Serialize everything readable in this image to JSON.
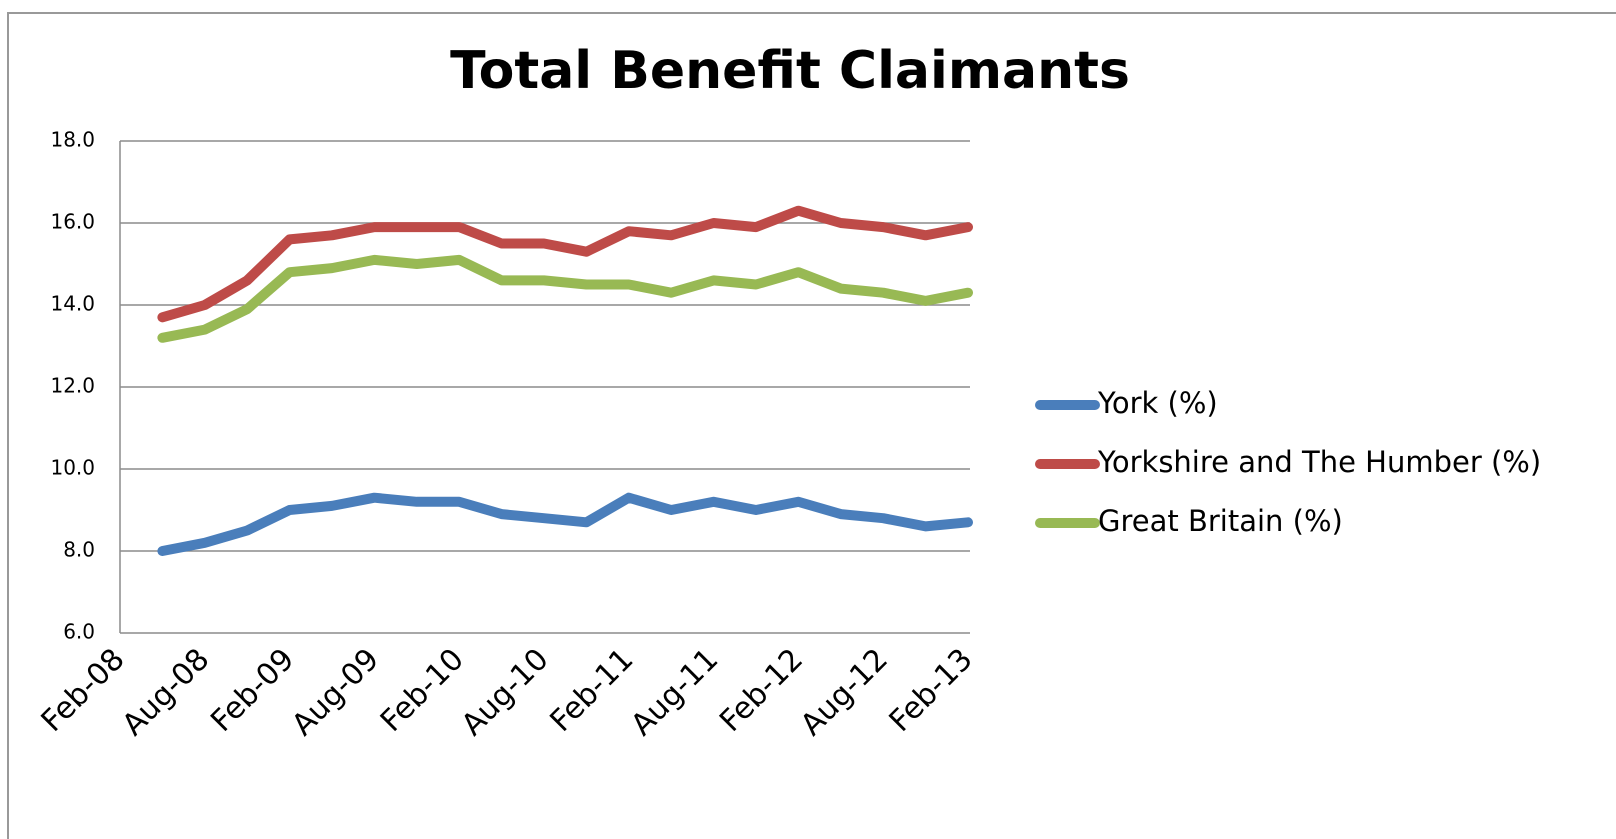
{
  "chart_data": {
    "type": "line",
    "title": "Total Benefit Claimants",
    "categories": [
      "Feb-08",
      null,
      "Aug-08",
      null,
      "Feb-09",
      null,
      "Aug-09",
      null,
      "Feb-10",
      null,
      "Aug-10",
      null,
      "Feb-11",
      null,
      "Aug-11",
      null,
      "Feb-12",
      null,
      "Aug-12",
      null,
      "Feb-13"
    ],
    "series": [
      {
        "name": "York (%)",
        "color": "#4a7ebb",
        "values": [
          null,
          8.0,
          8.2,
          8.5,
          9.0,
          9.1,
          9.3,
          9.2,
          9.2,
          8.9,
          8.8,
          8.7,
          9.3,
          9.0,
          9.2,
          9.0,
          9.2,
          8.9,
          8.8,
          8.6,
          8.7
        ]
      },
      {
        "name": "Yorkshire and The Humber (%)",
        "color": "#be4b48",
        "values": [
          null,
          13.7,
          14.0,
          14.6,
          15.6,
          15.7,
          15.9,
          15.9,
          15.9,
          15.5,
          15.5,
          15.3,
          15.8,
          15.7,
          16.0,
          15.9,
          16.3,
          16.0,
          15.9,
          15.7,
          15.9
        ]
      },
      {
        "name": "Great Britain (%)",
        "color": "#98b954",
        "values": [
          null,
          13.2,
          13.4,
          13.9,
          14.8,
          14.9,
          15.1,
          15.0,
          15.1,
          14.6,
          14.6,
          14.5,
          14.5,
          14.3,
          14.6,
          14.5,
          14.8,
          14.4,
          14.3,
          14.1,
          14.3
        ]
      }
    ],
    "ylim": [
      6,
      18
    ],
    "yticks": [
      {
        "value": 6,
        "label": "6.0"
      },
      {
        "value": 8,
        "label": "8.0"
      },
      {
        "value": 10,
        "label": "10.0"
      },
      {
        "value": 12,
        "label": "12.0"
      },
      {
        "value": 14,
        "label": "14.0"
      },
      {
        "value": 16,
        "label": "16.0"
      },
      {
        "value": 18,
        "label": "18.0"
      }
    ],
    "grid": true,
    "legend": "right"
  }
}
